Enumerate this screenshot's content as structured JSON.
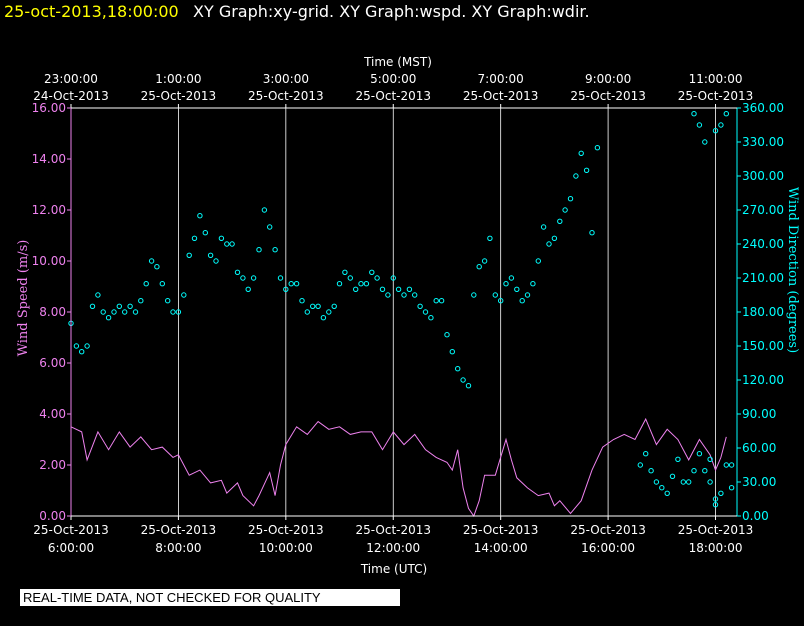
{
  "header": {
    "timestamp": "25-oct-2013,18:00:00",
    "graphs": "XY Graph:xy-grid.  XY Graph:wspd.  XY Graph:wdir."
  },
  "notice": "REAL-TIME DATA, NOT CHECKED FOR QUALITY",
  "colors": {
    "speed": "#ee82ee",
    "direction": "#00ffff",
    "header_time": "#ffff00",
    "text": "#ffffff",
    "background": "#000000"
  },
  "chart_data": {
    "type": "scatter",
    "top_axis_title": "Time (MST)",
    "top_ticks": [
      {
        "x": 6,
        "time": "23:00:00",
        "date": "24-Oct-2013"
      },
      {
        "x": 8,
        "time": "1:00:00",
        "date": "25-Oct-2013"
      },
      {
        "x": 10,
        "time": "3:00:00",
        "date": "25-Oct-2013"
      },
      {
        "x": 12,
        "time": "5:00:00",
        "date": "25-Oct-2013"
      },
      {
        "x": 14,
        "time": "7:00:00",
        "date": "25-Oct-2013"
      },
      {
        "x": 16,
        "time": "9:00:00",
        "date": "25-Oct-2013"
      },
      {
        "x": 18,
        "time": "11:00:00",
        "date": "25-Oct-2013"
      }
    ],
    "bottom_axis_title": "Time (UTC)",
    "bottom_ticks": [
      {
        "x": 6,
        "date": "25-Oct-2013",
        "time": "6:00:00"
      },
      {
        "x": 8,
        "date": "25-Oct-2013",
        "time": "8:00:00"
      },
      {
        "x": 10,
        "date": "25-Oct-2013",
        "time": "10:00:00"
      },
      {
        "x": 12,
        "date": "25-Oct-2013",
        "time": "12:00:00"
      },
      {
        "x": 14,
        "date": "25-Oct-2013",
        "time": "14:00:00"
      },
      {
        "x": 16,
        "date": "25-Oct-2013",
        "time": "16:00:00"
      },
      {
        "x": 18,
        "date": "25-Oct-2013",
        "time": "18:00:00"
      }
    ],
    "xlim": [
      6,
      18.4
    ],
    "left_axis": {
      "label": "Wind Speed (m/s)",
      "ylim": [
        0,
        16
      ],
      "ticks": [
        "0.00",
        "2.00",
        "4.00",
        "6.00",
        "8.00",
        "10.00",
        "12.00",
        "14.00",
        "16.00"
      ]
    },
    "right_axis": {
      "label": "Wind Direction (degrees)",
      "ylim": [
        0,
        360
      ],
      "ticks": [
        "0.00",
        "30.00",
        "60.00",
        "90.00",
        "120.00",
        "150.00",
        "180.00",
        "210.00",
        "240.00",
        "270.00",
        "300.00",
        "330.00",
        "360.00"
      ]
    },
    "series": [
      {
        "name": "wspd",
        "style": "line",
        "unit": "m/s",
        "points": [
          [
            6.0,
            3.5
          ],
          [
            6.2,
            3.3
          ],
          [
            6.3,
            2.2
          ],
          [
            6.5,
            3.3
          ],
          [
            6.7,
            2.6
          ],
          [
            6.9,
            3.3
          ],
          [
            7.1,
            2.7
          ],
          [
            7.3,
            3.1
          ],
          [
            7.5,
            2.6
          ],
          [
            7.7,
            2.7
          ],
          [
            7.9,
            2.3
          ],
          [
            8.0,
            2.4
          ],
          [
            8.2,
            1.6
          ],
          [
            8.4,
            1.8
          ],
          [
            8.6,
            1.3
          ],
          [
            8.8,
            1.4
          ],
          [
            8.9,
            0.9
          ],
          [
            9.1,
            1.3
          ],
          [
            9.2,
            0.8
          ],
          [
            9.4,
            0.4
          ],
          [
            9.5,
            0.8
          ],
          [
            9.7,
            1.7
          ],
          [
            9.8,
            0.8
          ],
          [
            9.9,
            2.0
          ],
          [
            10.0,
            2.8
          ],
          [
            10.2,
            3.5
          ],
          [
            10.4,
            3.2
          ],
          [
            10.6,
            3.7
          ],
          [
            10.8,
            3.4
          ],
          [
            11.0,
            3.5
          ],
          [
            11.2,
            3.2
          ],
          [
            11.4,
            3.3
          ],
          [
            11.6,
            3.3
          ],
          [
            11.8,
            2.6
          ],
          [
            12.0,
            3.3
          ],
          [
            12.2,
            2.8
          ],
          [
            12.4,
            3.2
          ],
          [
            12.6,
            2.6
          ],
          [
            12.8,
            2.3
          ],
          [
            13.0,
            2.1
          ],
          [
            13.1,
            1.8
          ],
          [
            13.2,
            2.6
          ],
          [
            13.3,
            1.1
          ],
          [
            13.4,
            0.3
          ],
          [
            13.5,
            0.0
          ],
          [
            13.6,
            0.6
          ],
          [
            13.7,
            1.6
          ],
          [
            13.9,
            1.6
          ],
          [
            14.1,
            3.0
          ],
          [
            14.2,
            2.2
          ],
          [
            14.3,
            1.5
          ],
          [
            14.5,
            1.1
          ],
          [
            14.7,
            0.8
          ],
          [
            14.9,
            0.9
          ],
          [
            15.0,
            0.4
          ],
          [
            15.1,
            0.6
          ],
          [
            15.3,
            0.1
          ],
          [
            15.5,
            0.6
          ],
          [
            15.7,
            1.8
          ],
          [
            15.9,
            2.7
          ],
          [
            16.1,
            3.0
          ],
          [
            16.3,
            3.2
          ],
          [
            16.5,
            3.0
          ],
          [
            16.7,
            3.8
          ],
          [
            16.9,
            2.8
          ],
          [
            17.1,
            3.4
          ],
          [
            17.3,
            3.0
          ],
          [
            17.5,
            2.2
          ],
          [
            17.7,
            3.0
          ],
          [
            17.9,
            2.4
          ],
          [
            18.0,
            1.8
          ],
          [
            18.1,
            2.3
          ],
          [
            18.2,
            3.1
          ]
        ]
      },
      {
        "name": "wdir",
        "style": "markers",
        "unit": "degrees",
        "points": [
          [
            6.0,
            170
          ],
          [
            6.1,
            150
          ],
          [
            6.2,
            145
          ],
          [
            6.3,
            150
          ],
          [
            6.4,
            185
          ],
          [
            6.5,
            195
          ],
          [
            6.6,
            180
          ],
          [
            6.7,
            175
          ],
          [
            6.8,
            180
          ],
          [
            6.9,
            185
          ],
          [
            7.0,
            180
          ],
          [
            7.1,
            185
          ],
          [
            7.2,
            180
          ],
          [
            7.3,
            190
          ],
          [
            7.4,
            205
          ],
          [
            7.5,
            225
          ],
          [
            7.6,
            220
          ],
          [
            7.7,
            205
          ],
          [
            7.8,
            190
          ],
          [
            7.9,
            180
          ],
          [
            8.0,
            180
          ],
          [
            8.1,
            195
          ],
          [
            8.2,
            230
          ],
          [
            8.3,
            245
          ],
          [
            8.4,
            265
          ],
          [
            8.5,
            250
          ],
          [
            8.6,
            230
          ],
          [
            8.7,
            225
          ],
          [
            8.8,
            245
          ],
          [
            8.9,
            240
          ],
          [
            9.0,
            240
          ],
          [
            9.1,
            215
          ],
          [
            9.2,
            210
          ],
          [
            9.3,
            200
          ],
          [
            9.4,
            210
          ],
          [
            9.5,
            235
          ],
          [
            9.6,
            270
          ],
          [
            9.7,
            255
          ],
          [
            9.8,
            235
          ],
          [
            9.9,
            210
          ],
          [
            10.0,
            200
          ],
          [
            10.1,
            205
          ],
          [
            10.2,
            205
          ],
          [
            10.3,
            190
          ],
          [
            10.4,
            180
          ],
          [
            10.5,
            185
          ],
          [
            10.6,
            185
          ],
          [
            10.7,
            175
          ],
          [
            10.8,
            180
          ],
          [
            10.9,
            185
          ],
          [
            11.0,
            205
          ],
          [
            11.1,
            215
          ],
          [
            11.2,
            210
          ],
          [
            11.3,
            200
          ],
          [
            11.4,
            205
          ],
          [
            11.5,
            205
          ],
          [
            11.6,
            215
          ],
          [
            11.7,
            210
          ],
          [
            11.8,
            200
          ],
          [
            11.9,
            195
          ],
          [
            12.0,
            210
          ],
          [
            12.1,
            200
          ],
          [
            12.2,
            195
          ],
          [
            12.3,
            200
          ],
          [
            12.4,
            195
          ],
          [
            12.5,
            185
          ],
          [
            12.6,
            180
          ],
          [
            12.7,
            175
          ],
          [
            12.8,
            190
          ],
          [
            12.9,
            190
          ],
          [
            13.0,
            160
          ],
          [
            13.1,
            145
          ],
          [
            13.2,
            130
          ],
          [
            13.3,
            120
          ],
          [
            13.4,
            115
          ],
          [
            13.5,
            195
          ],
          [
            13.6,
            220
          ],
          [
            13.7,
            225
          ],
          [
            13.8,
            245
          ],
          [
            13.9,
            195
          ],
          [
            14.0,
            190
          ],
          [
            14.1,
            205
          ],
          [
            14.2,
            210
          ],
          [
            14.3,
            200
          ],
          [
            14.4,
            190
          ],
          [
            14.5,
            195
          ],
          [
            14.6,
            205
          ],
          [
            14.7,
            225
          ],
          [
            14.8,
            255
          ],
          [
            14.9,
            240
          ],
          [
            15.0,
            245
          ],
          [
            15.1,
            260
          ],
          [
            15.2,
            270
          ],
          [
            15.3,
            280
          ],
          [
            15.4,
            300
          ],
          [
            15.5,
            320
          ],
          [
            15.6,
            305
          ],
          [
            15.7,
            250
          ],
          [
            15.8,
            325
          ],
          [
            16.6,
            45
          ],
          [
            16.7,
            55
          ],
          [
            16.8,
            40
          ],
          [
            16.9,
            30
          ],
          [
            17.0,
            25
          ],
          [
            17.1,
            20
          ],
          [
            17.2,
            35
          ],
          [
            17.3,
            50
          ],
          [
            17.4,
            30
          ],
          [
            17.5,
            30
          ],
          [
            17.6,
            40
          ],
          [
            17.7,
            55
          ],
          [
            17.8,
            40
          ],
          [
            17.9,
            30
          ],
          [
            18.0,
            15
          ],
          [
            18.1,
            20
          ],
          [
            18.2,
            45
          ],
          [
            17.6,
            355
          ],
          [
            17.7,
            345
          ],
          [
            17.8,
            330
          ],
          [
            18.0,
            340
          ],
          [
            18.1,
            345
          ],
          [
            18.2,
            355
          ],
          [
            18.3,
            25
          ],
          [
            18.0,
            10
          ],
          [
            17.9,
            50
          ],
          [
            18.3,
            45
          ]
        ]
      }
    ]
  }
}
